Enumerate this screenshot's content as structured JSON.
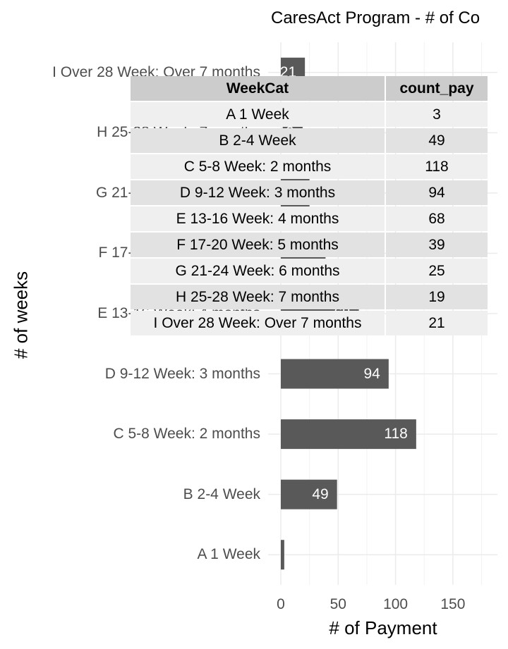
{
  "chart_data": {
    "type": "bar",
    "orientation": "horizontal",
    "title": "CaresAct Program - # of Co",
    "xlabel": "# of Payment",
    "ylabel": "# of weeks",
    "categories": [
      "A 1 Week",
      "B 2-4 Week",
      "C 5-8 Week: 2 months",
      "D 9-12 Week: 3 months",
      "E 13-16 Week: 4 months",
      "F 17-20 Week: 5 months",
      "G 21-24 Week: 6 months",
      "H 25-28 Week: 7 months",
      "I Over 28 Week: Over 7 months"
    ],
    "values": [
      3,
      49,
      118,
      94,
      68,
      39,
      25,
      19,
      21
    ],
    "xlim": [
      0,
      190
    ],
    "xticks": [
      0,
      50,
      100,
      150
    ],
    "grid": true,
    "bar_color": "#595959",
    "table": {
      "headers": [
        "WeekCat",
        "count_pay"
      ],
      "rows": [
        [
          "A 1 Week",
          "3"
        ],
        [
          "B 2-4 Week",
          "49"
        ],
        [
          "C 5-8 Week: 2 months",
          "118"
        ],
        [
          "D 9-12 Week: 3 months",
          "94"
        ],
        [
          "E 13-16 Week: 4 months",
          "68"
        ],
        [
          "F 17-20 Week: 5 months",
          "39"
        ],
        [
          "G 21-24 Week: 6 months",
          "25"
        ],
        [
          "H 25-28 Week: 7 months",
          "19"
        ],
        [
          "I Over 28 Week: Over 7 months",
          "21"
        ]
      ]
    }
  }
}
